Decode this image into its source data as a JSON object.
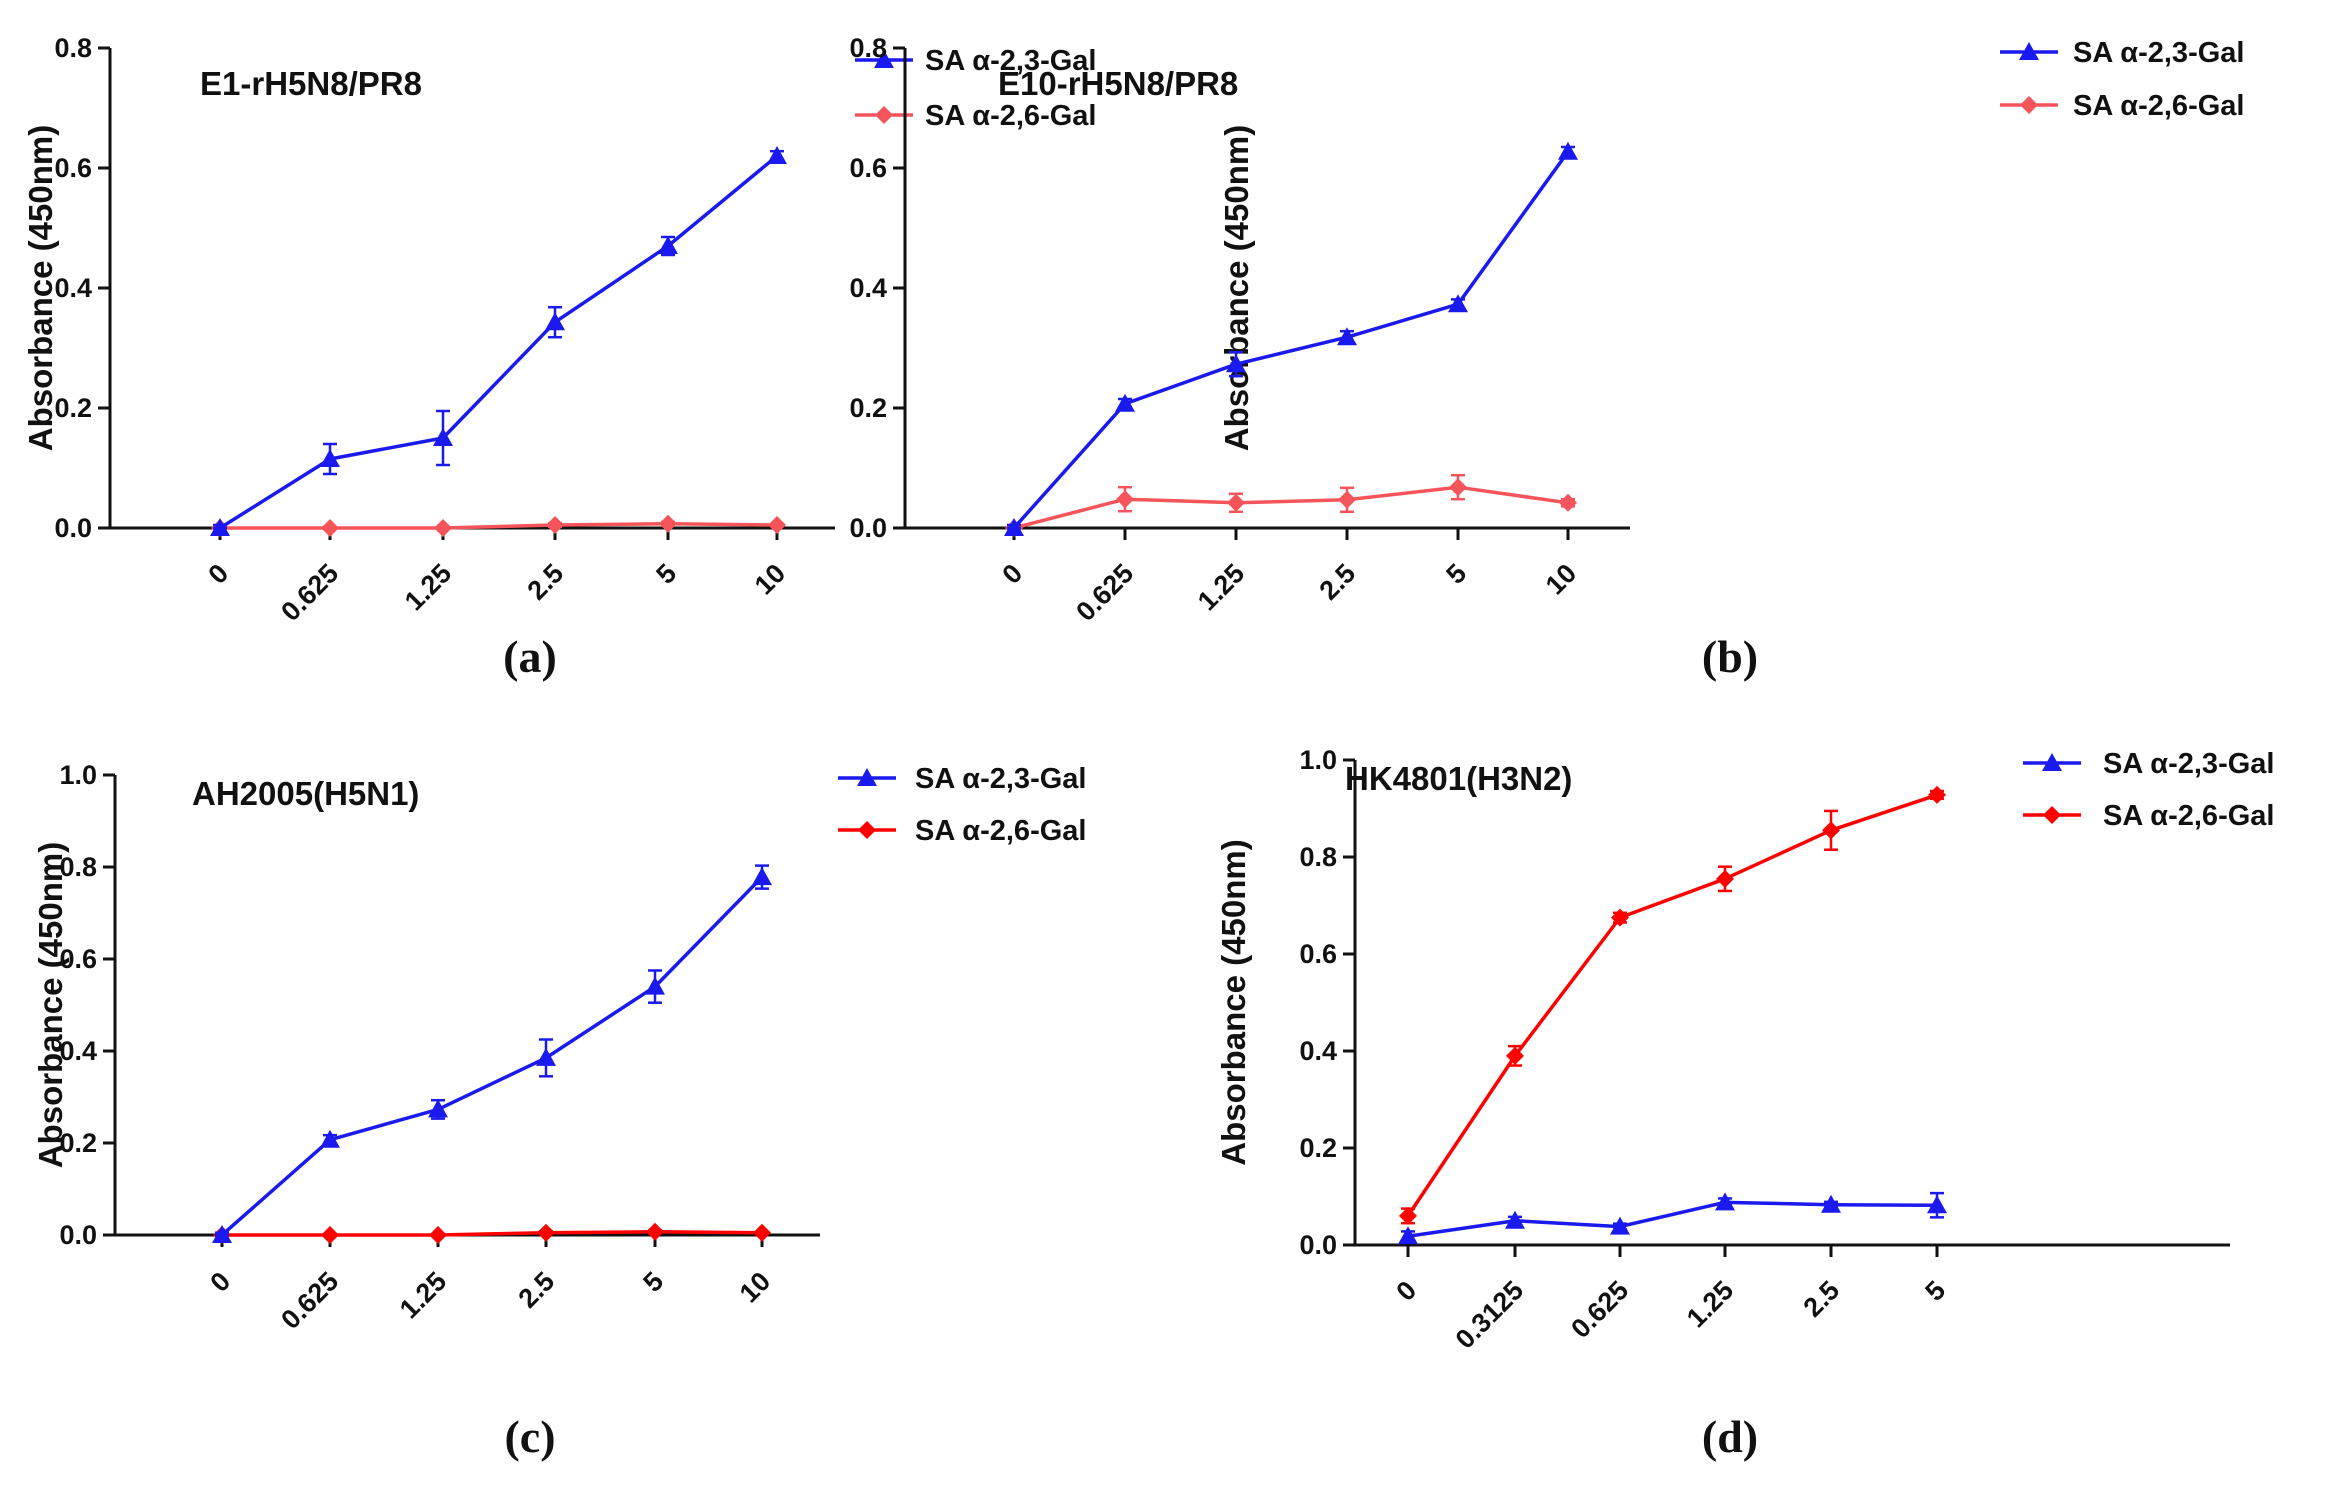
{
  "colors": {
    "blue": "#1a1aef",
    "red": "#ff0000",
    "salmon": "#f5555a",
    "axis": "#111111"
  },
  "chart_data": [
    {
      "type": "line",
      "panel_letter": "(a)",
      "title": "E1-rH5N8/PR8",
      "xlabel": "",
      "ylabel": "Absorbance (450nm)",
      "categories": [
        "0",
        "0.625",
        "1.25",
        "2.5",
        "5",
        "10"
      ],
      "ylim": [
        0,
        0.8
      ],
      "yticks": [
        "0.0",
        "0.2",
        "0.4",
        "0.6",
        "0.8"
      ],
      "legend_position": "top-right",
      "series": [
        {
          "name": "SA α-2,3-Gal",
          "marker": "triangle",
          "color": "#1a1aef",
          "values": [
            0.0,
            0.115,
            0.15,
            0.343,
            0.47,
            0.62
          ],
          "errors": [
            0.005,
            0.025,
            0.045,
            0.025,
            0.015,
            0.008
          ]
        },
        {
          "name": "SA α-2,6-Gal",
          "marker": "diamond",
          "color": "#f5555a",
          "values": [
            0.0,
            0.0,
            0.0,
            0.005,
            0.007,
            0.005
          ],
          "errors": [
            0.002,
            0.002,
            0.002,
            0.003,
            0.003,
            0.002
          ]
        }
      ]
    },
    {
      "type": "line",
      "panel_letter": "(b)",
      "title": "E10-rH5N8/PR8",
      "xlabel": "",
      "ylabel": "Absorbance (450nm)",
      "categories": [
        "0",
        "0.625",
        "1.25",
        "2.5",
        "5",
        "10"
      ],
      "ylim": [
        0,
        0.8
      ],
      "yticks": [
        "0.0",
        "0.2",
        "0.4",
        "0.6",
        "0.8"
      ],
      "legend_position": "top-right",
      "series": [
        {
          "name": "SA α-2,3-Gal",
          "marker": "triangle",
          "color": "#1a1aef",
          "values": [
            0.0,
            0.207,
            0.273,
            0.318,
            0.373,
            0.627
          ],
          "errors": [
            0.005,
            0.008,
            0.02,
            0.01,
            0.008,
            0.008
          ]
        },
        {
          "name": "SA α-2,6-Gal",
          "marker": "diamond",
          "color": "#f5555a",
          "values": [
            0.0,
            0.048,
            0.042,
            0.047,
            0.068,
            0.042
          ],
          "errors": [
            0.005,
            0.02,
            0.015,
            0.02,
            0.02,
            0.006
          ]
        }
      ]
    },
    {
      "type": "line",
      "panel_letter": "(c)",
      "title": "AH2005(H5N1)",
      "xlabel": "",
      "ylabel": "Absorbance (450nm)",
      "categories": [
        "0",
        "0.625",
        "1.25",
        "2.5",
        "5",
        "10"
      ],
      "ylim": [
        0,
        1.0
      ],
      "yticks": [
        "0.0",
        "0.2",
        "0.4",
        "0.6",
        "0.8",
        "1.0"
      ],
      "legend_position": "top-right",
      "series": [
        {
          "name": "SA α-2,3-Gal",
          "marker": "triangle",
          "color": "#1a1aef",
          "values": [
            0.0,
            0.207,
            0.273,
            0.385,
            0.54,
            0.778
          ],
          "errors": [
            0.005,
            0.01,
            0.02,
            0.04,
            0.035,
            0.025
          ]
        },
        {
          "name": "SA α-2,6-Gal",
          "marker": "diamond",
          "color": "#ff0000",
          "values": [
            0.0,
            0.0,
            0.0,
            0.005,
            0.007,
            0.005
          ],
          "errors": [
            0.002,
            0.002,
            0.002,
            0.003,
            0.003,
            0.002
          ]
        }
      ]
    },
    {
      "type": "line",
      "panel_letter": "(d)",
      "title": "HK4801(H3N2)",
      "xlabel": "",
      "ylabel": "Absorbance (450nm)",
      "categories": [
        "0",
        "0.3125",
        "0.625",
        "1.25",
        "2.5",
        "5"
      ],
      "ylim": [
        0,
        1.0
      ],
      "yticks": [
        "0.0",
        "0.2",
        "0.4",
        "0.6",
        "0.8",
        "1.0"
      ],
      "legend_position": "top-right",
      "series": [
        {
          "name": "SA α-2,3-Gal",
          "marker": "triangle",
          "color": "#1a1aef",
          "values": [
            0.018,
            0.05,
            0.038,
            0.088,
            0.083,
            0.082
          ],
          "errors": [
            0.01,
            0.008,
            0.006,
            0.008,
            0.006,
            0.025
          ]
        },
        {
          "name": "SA α-2,6-Gal",
          "marker": "diamond",
          "color": "#ff0000",
          "values": [
            0.06,
            0.39,
            0.675,
            0.755,
            0.855,
            0.928
          ],
          "errors": [
            0.015,
            0.02,
            0.01,
            0.025,
            0.04,
            0.008
          ]
        }
      ]
    }
  ]
}
